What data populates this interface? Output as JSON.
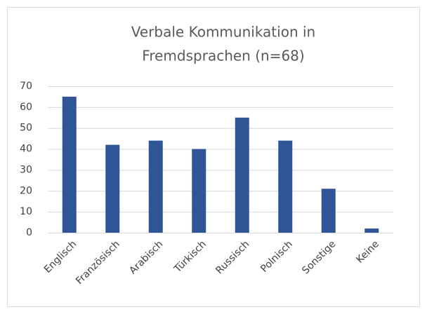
{
  "chart_data": {
    "type": "bar",
    "title": [
      "Verbale Kommunikation in",
      "Fremdsprachen (n=68)"
    ],
    "categories": [
      "Englisch",
      "Französisch",
      "Arabisch",
      "Türkisch",
      "Russisch",
      "Polnisch",
      "Sonstige",
      "Keine"
    ],
    "values": [
      65,
      42,
      44,
      40,
      55,
      44,
      21,
      2
    ],
    "color": "#2f5597",
    "ylim": [
      0,
      70
    ],
    "yticks": [
      0,
      10,
      20,
      30,
      40,
      50,
      60,
      70
    ],
    "grid": true
  }
}
